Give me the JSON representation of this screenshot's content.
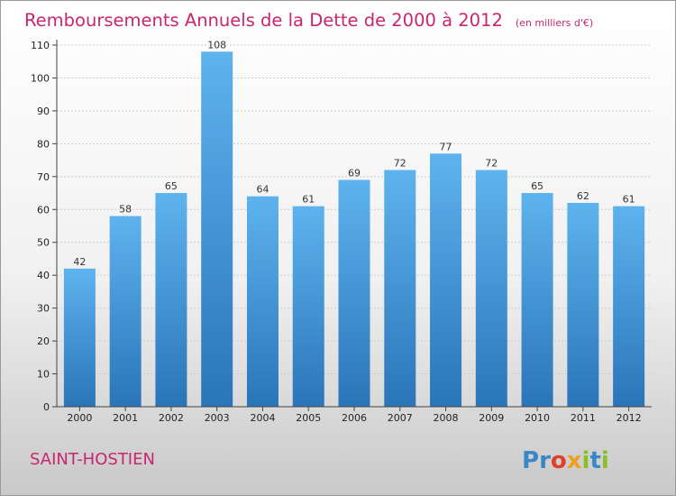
{
  "header": {
    "title": "Remboursements Annuels de la Dette de 2000 à 2012",
    "unit": "(en milliers d'€)"
  },
  "footer": {
    "commune": "SAINT-HOSTIEN",
    "logo_text": "Proxiti",
    "logo_letters": [
      {
        "ch": "P",
        "color": "#3a87c8"
      },
      {
        "ch": "r",
        "color": "#3a87c8"
      },
      {
        "ch": "o",
        "color": "#e0402a"
      },
      {
        "ch": "x",
        "color": "#f0a020"
      },
      {
        "ch": "i",
        "color": "#8cbf26"
      },
      {
        "ch": "t",
        "color": "#3a87c8"
      },
      {
        "ch": "i",
        "color": "#8cbf26"
      }
    ]
  },
  "colors": {
    "bar_top": "#5eb3ee",
    "bar_bottom": "#2a75b8",
    "title": "#c8266f",
    "grid": "#cccccc",
    "axis": "#444444"
  },
  "chart_data": {
    "type": "bar",
    "title": "Remboursements Annuels de la Dette de 2000 à 2012",
    "subtitle": "(en milliers d'€)",
    "xlabel": "",
    "ylabel": "",
    "categories": [
      "2000",
      "2001",
      "2002",
      "2003",
      "2004",
      "2005",
      "2006",
      "2007",
      "2008",
      "2009",
      "2010",
      "2011",
      "2012"
    ],
    "values": [
      42,
      58,
      65,
      108,
      64,
      61,
      69,
      72,
      77,
      72,
      65,
      62,
      61
    ],
    "ylim": [
      0,
      110
    ],
    "yticks": [
      0,
      10,
      20,
      30,
      40,
      50,
      60,
      70,
      80,
      90,
      100,
      110
    ],
    "grid": true,
    "legend": "none"
  }
}
